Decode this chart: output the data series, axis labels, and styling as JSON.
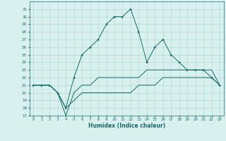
{
  "xlabel": "Humidex (Indice chaleur)",
  "bg_color": "#d8f0ee",
  "grid_color": "#aad4d0",
  "line_color": "#1a6b6b",
  "xlim": [
    -0.5,
    23.5
  ],
  "ylim": [
    17,
    32
  ],
  "xticks": [
    0,
    1,
    2,
    3,
    4,
    5,
    6,
    7,
    8,
    9,
    10,
    11,
    12,
    13,
    14,
    15,
    16,
    17,
    18,
    19,
    20,
    21,
    22,
    23
  ],
  "yticks": [
    17,
    18,
    19,
    20,
    21,
    22,
    23,
    24,
    25,
    26,
    27,
    28,
    29,
    30,
    31
  ],
  "line1_x": [
    0,
    1,
    2,
    3,
    4,
    5,
    6,
    7,
    8,
    9,
    10,
    11,
    12,
    13,
    14,
    15,
    16,
    17,
    18,
    19,
    20,
    21,
    22,
    23
  ],
  "line1_y": [
    21,
    21,
    21,
    20,
    18,
    22,
    25,
    26,
    27,
    29,
    30,
    30,
    31,
    28,
    24,
    26,
    27,
    25,
    24,
    23,
    23,
    23,
    22,
    21
  ],
  "line2_x": [
    0,
    1,
    2,
    3,
    4,
    5,
    6,
    7,
    8,
    9,
    10,
    11,
    12,
    13,
    14,
    15,
    16,
    17,
    18,
    19,
    20,
    21,
    22,
    23
  ],
  "line2_y": [
    21,
    21,
    21,
    20,
    17,
    20,
    21,
    21,
    22,
    22,
    22,
    22,
    22,
    22,
    23,
    23,
    23,
    23,
    23,
    23,
    23,
    23,
    23,
    21
  ],
  "line3_x": [
    0,
    1,
    2,
    3,
    4,
    5,
    6,
    7,
    8,
    9,
    10,
    11,
    12,
    13,
    14,
    15,
    16,
    17,
    18,
    19,
    20,
    21,
    22,
    23
  ],
  "line3_y": [
    21,
    21,
    21,
    20,
    18,
    19,
    20,
    20,
    20,
    20,
    20,
    20,
    20,
    21,
    21,
    21,
    22,
    22,
    22,
    22,
    22,
    22,
    22,
    21
  ]
}
